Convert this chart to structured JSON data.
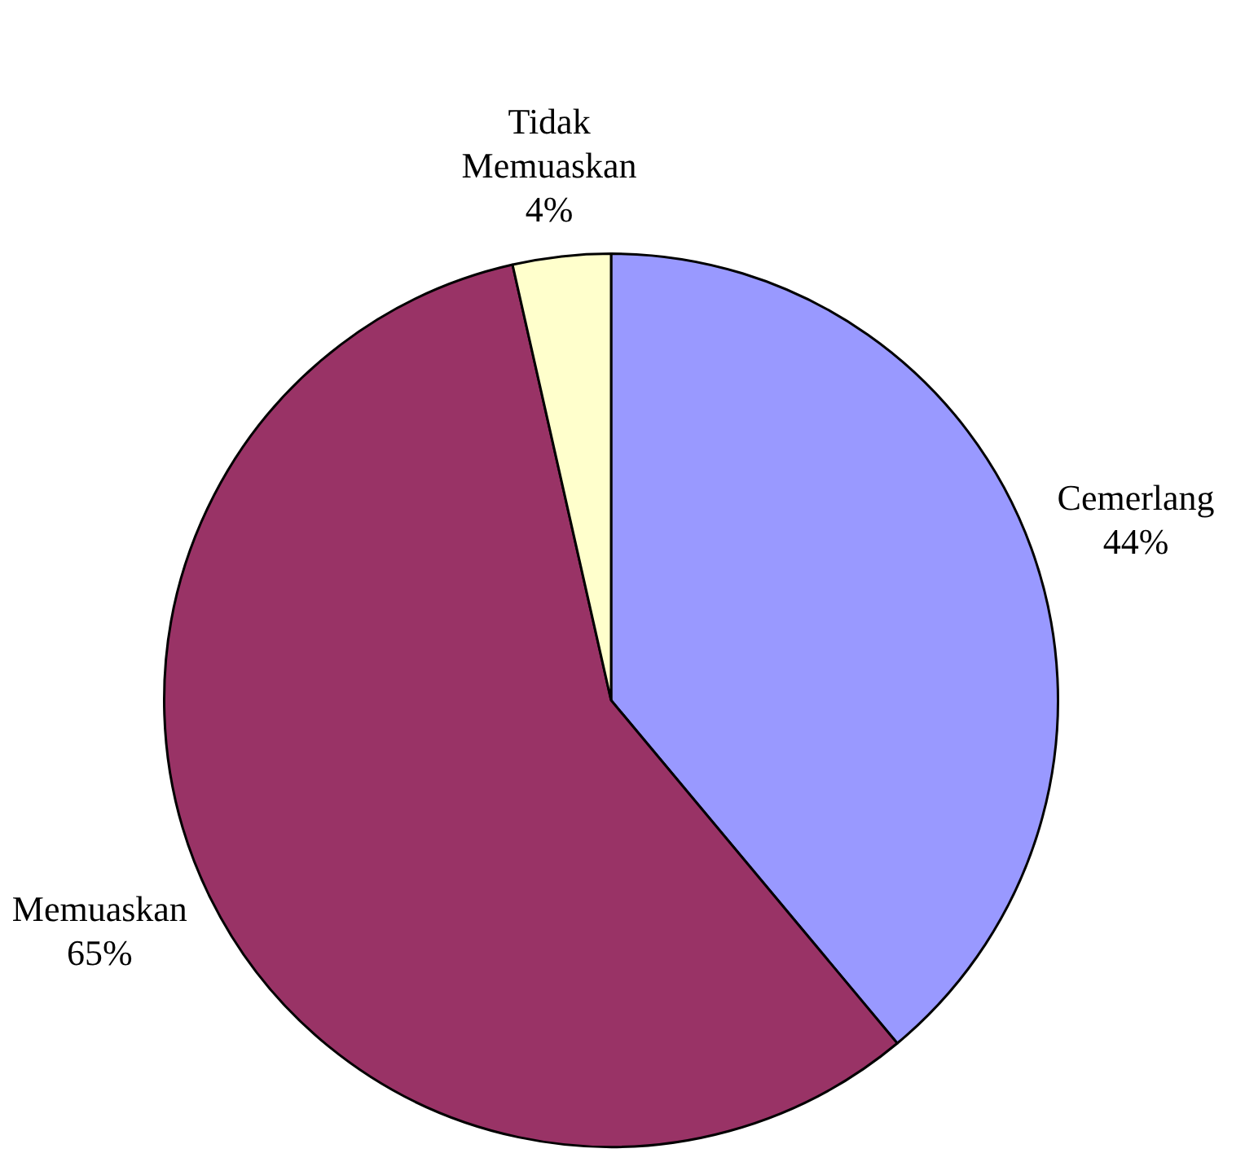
{
  "chart_data": {
    "type": "pie",
    "categories": [
      "Cemerlang",
      "Memuaskan",
      "Tidak Memuaskan"
    ],
    "values": [
      44,
      65,
      4
    ],
    "colors": [
      "#9999ff",
      "#993366",
      "#ffffcc"
    ],
    "value_labels": [
      "44%",
      "65%",
      "4%"
    ]
  }
}
